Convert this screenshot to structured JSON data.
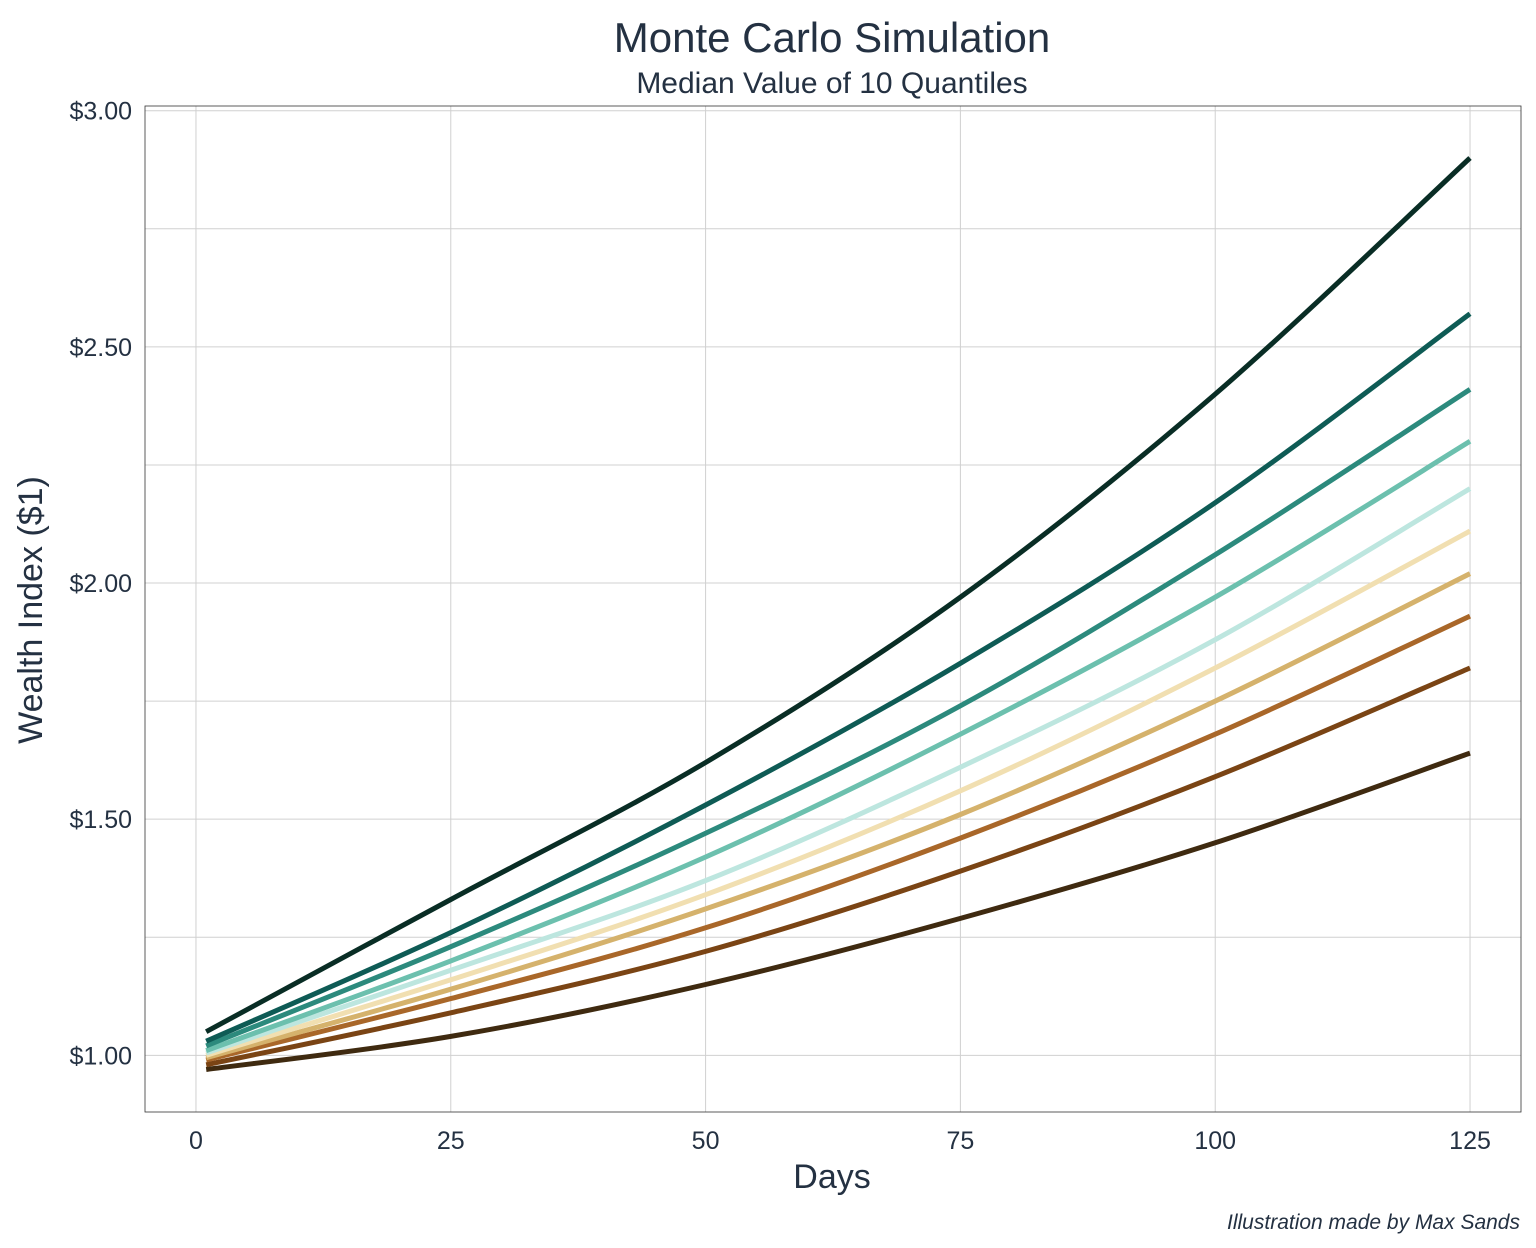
{
  "chart_data": {
    "type": "line",
    "title": "Monte Carlo Simulation",
    "subtitle": "Median Value of 10 Quantiles",
    "xlabel": "Days",
    "ylabel": "Wealth Index ($1)",
    "caption": "Illustration made by Max Sands",
    "xlim": [
      -5,
      130
    ],
    "ylim": [
      0.88,
      3.01
    ],
    "x_ticks": [
      0,
      25,
      50,
      75,
      100,
      125
    ],
    "x_tick_labels": [
      "0",
      "25",
      "50",
      "75",
      "100",
      "125"
    ],
    "y_ticks": [
      1.0,
      1.5,
      2.0,
      2.5,
      3.0
    ],
    "y_tick_labels": [
      "$1.00",
      "$1.50",
      "$2.00",
      "$2.50",
      "$3.00"
    ],
    "y_minor_ticks": [
      1.25,
      1.75,
      2.25,
      2.75
    ],
    "grid": true,
    "legend": "none",
    "x": [
      1,
      25,
      50,
      75,
      100,
      125
    ],
    "series": [
      {
        "color": "#3f2a10",
        "values": [
          0.97,
          1.04,
          1.15,
          1.29,
          1.45,
          1.64
        ]
      },
      {
        "color": "#7a4414",
        "values": [
          0.98,
          1.09,
          1.22,
          1.39,
          1.59,
          1.82
        ]
      },
      {
        "color": "#a96729",
        "values": [
          0.99,
          1.12,
          1.27,
          1.46,
          1.68,
          1.93
        ]
      },
      {
        "color": "#d5b26c",
        "values": [
          0.995,
          1.14,
          1.31,
          1.51,
          1.75,
          2.02
        ]
      },
      {
        "color": "#f1dfb1",
        "values": [
          1.0,
          1.16,
          1.34,
          1.56,
          1.82,
          2.11
        ]
      },
      {
        "color": "#bde6df",
        "values": [
          1.005,
          1.18,
          1.37,
          1.61,
          1.88,
          2.2
        ]
      },
      {
        "color": "#6cc0ae",
        "values": [
          1.01,
          1.2,
          1.42,
          1.68,
          1.97,
          2.3
        ]
      },
      {
        "color": "#2c8a7d",
        "values": [
          1.02,
          1.23,
          1.47,
          1.74,
          2.06,
          2.41
        ]
      },
      {
        "color": "#0e5b55",
        "values": [
          1.03,
          1.26,
          1.53,
          1.83,
          2.17,
          2.57
        ]
      },
      {
        "color": "#092d25",
        "values": [
          1.05,
          1.33,
          1.62,
          1.97,
          2.4,
          2.9
        ]
      }
    ]
  }
}
